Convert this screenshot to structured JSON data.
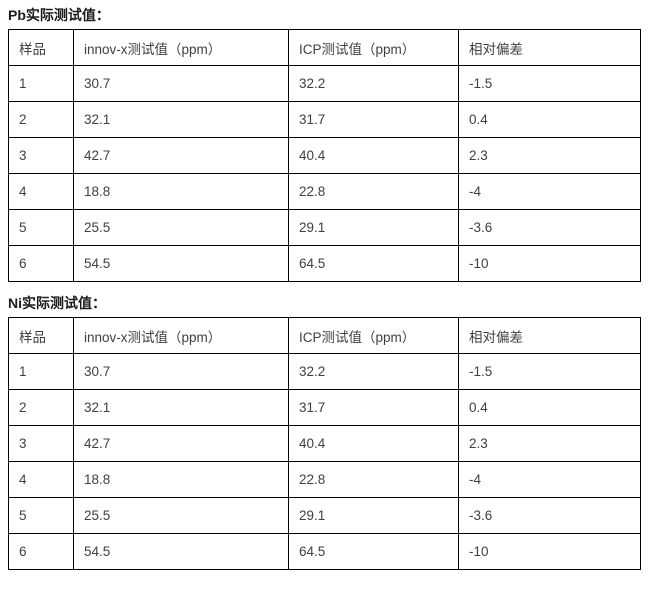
{
  "page": {
    "background": "#ffffff",
    "text_color": "#404040",
    "title_color": "#1c1c1c",
    "border_color": "#000000"
  },
  "sections": [
    {
      "title": "Pb实际测试值：",
      "headers": [
        "样品",
        "innov-x测试值（ppm）",
        "ICP测试值（ppm）",
        "相对偏差"
      ],
      "rows": [
        [
          "1",
          "30.7",
          "32.2",
          "-1.5"
        ],
        [
          "2",
          "32.1",
          "31.7",
          "0.4"
        ],
        [
          "3",
          "42.7",
          "40.4",
          "2.3"
        ],
        [
          "4",
          "18.8",
          "22.8",
          "-4"
        ],
        [
          "5",
          "25.5",
          "29.1",
          "-3.6"
        ],
        [
          "6",
          "54.5",
          "64.5",
          "-10"
        ]
      ]
    },
    {
      "title": "Ni实际测试值：",
      "headers": [
        "样品",
        "innov-x测试值（ppm）",
        "ICP测试值（ppm）",
        "相对偏差"
      ],
      "rows": [
        [
          "1",
          "30.7",
          "32.2",
          "-1.5"
        ],
        [
          "2",
          "32.1",
          "31.7",
          "0.4"
        ],
        [
          "3",
          "42.7",
          "40.4",
          "2.3"
        ],
        [
          "4",
          "18.8",
          "22.8",
          "-4"
        ],
        [
          "5",
          "25.5",
          "29.1",
          "-3.6"
        ],
        [
          "6",
          "54.5",
          "64.5",
          "-10"
        ]
      ]
    }
  ]
}
